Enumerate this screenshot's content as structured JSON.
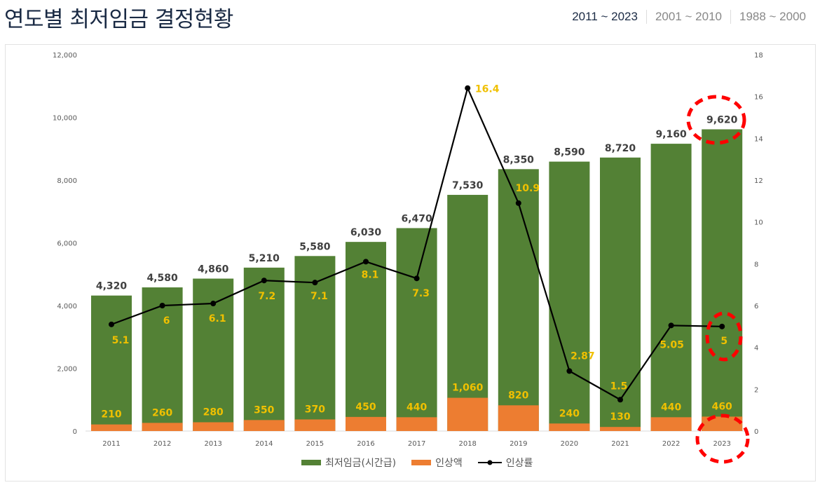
{
  "header": {
    "title": "연도별 최저임금 결정현황",
    "tabs": [
      {
        "label": "2011 ~ 2023",
        "active": true
      },
      {
        "label": "2001 ~ 2010",
        "active": false
      },
      {
        "label": "1988 ~ 2000",
        "active": false
      }
    ]
  },
  "colors": {
    "wage": "#538135",
    "increase": "#ed7d31",
    "rate": "#000000",
    "rate_label": "#f0c000",
    "annotation": "#ff0000"
  },
  "chart_data": {
    "type": "bar",
    "categories": [
      "2011",
      "2012",
      "2013",
      "2014",
      "2015",
      "2016",
      "2017",
      "2018",
      "2019",
      "2020",
      "2021",
      "2022",
      "2023"
    ],
    "series": [
      {
        "name": "최저임금(시간급)",
        "type": "bar",
        "axis": "left",
        "values": [
          4320,
          4580,
          4860,
          5210,
          5580,
          6030,
          6470,
          7530,
          8350,
          8590,
          8720,
          9160,
          9620
        ],
        "labels": [
          "4,320",
          "4,580",
          "4,860",
          "5,210",
          "5,580",
          "6,030",
          "6,470",
          "7,530",
          "8,350",
          "8,590",
          "8,720",
          "9,160",
          "9,620"
        ]
      },
      {
        "name": "인상액",
        "type": "bar",
        "axis": "left",
        "values": [
          210,
          260,
          280,
          350,
          370,
          450,
          440,
          1060,
          820,
          240,
          130,
          440,
          460
        ],
        "labels": [
          "210",
          "260",
          "280",
          "350",
          "370",
          "450",
          "440",
          "1,060",
          "820",
          "240",
          "130",
          "440",
          "460"
        ]
      },
      {
        "name": "인상률",
        "type": "line",
        "axis": "right",
        "values": [
          5.1,
          6,
          6.1,
          7.2,
          7.1,
          8.1,
          7.3,
          16.4,
          10.9,
          2.87,
          1.5,
          5.05,
          5
        ],
        "labels": [
          "5.1",
          "6",
          "6.1",
          "7.2",
          "7.1",
          "8.1",
          "7.3",
          "16.4",
          "10.9",
          "2.87",
          "1.5",
          "5.05",
          "5"
        ]
      }
    ],
    "ylim": [
      0,
      12000
    ],
    "y_ticks": [
      "0",
      "2,000",
      "4,000",
      "6,000",
      "8,000",
      "10,000",
      "12,000"
    ],
    "y2lim": [
      0,
      18
    ],
    "y2_ticks": [
      "0",
      "2",
      "4",
      "6",
      "8",
      "10",
      "12",
      "14",
      "16",
      "18"
    ],
    "grid": false,
    "legend": "bottom",
    "annotations": [
      "circled 2023 wage 9,620",
      "circled 2023 rate 5",
      "circled 2023 category"
    ]
  }
}
